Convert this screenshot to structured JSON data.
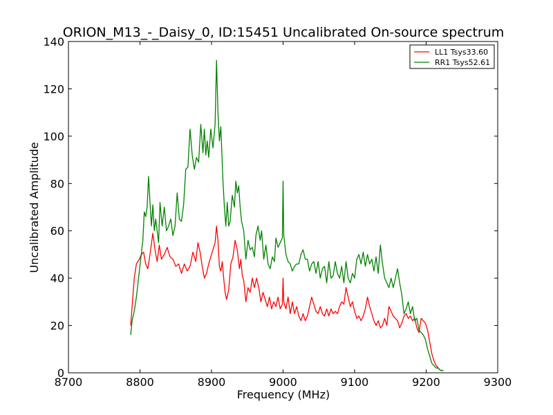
{
  "chart_data": {
    "type": "line",
    "title": "ORION_M13_-_Daisy_0, ID:15451 Uncalibrated On-source spectrum",
    "xlabel": "Frequency (MHz)",
    "ylabel": "Uncalibrated Amplitude",
    "xlim": [
      8700,
      9300
    ],
    "ylim": [
      0,
      140
    ],
    "xticks": [
      8700,
      8800,
      8900,
      9000,
      9100,
      9200,
      9300
    ],
    "yticks": [
      0,
      20,
      40,
      60,
      80,
      100,
      120,
      140
    ],
    "grid": false,
    "legend": "top-right",
    "series": [
      {
        "name": "LL1 Tsys33.60",
        "color": "#ff0000",
        "points": [
          [
            8787,
            20
          ],
          [
            8789,
            28
          ],
          [
            8792,
            40
          ],
          [
            8795,
            46
          ],
          [
            8799,
            48
          ],
          [
            8802,
            50
          ],
          [
            8805,
            51
          ],
          [
            8808,
            46
          ],
          [
            8811,
            44
          ],
          [
            8814,
            50
          ],
          [
            8818,
            59
          ],
          [
            8821,
            52
          ],
          [
            8824,
            47
          ],
          [
            8827,
            54
          ],
          [
            8830,
            48
          ],
          [
            8834,
            50
          ],
          [
            8838,
            53
          ],
          [
            8842,
            49
          ],
          [
            8846,
            48
          ],
          [
            8850,
            45
          ],
          [
            8854,
            46
          ],
          [
            8858,
            42
          ],
          [
            8862,
            46
          ],
          [
            8866,
            43
          ],
          [
            8870,
            45
          ],
          [
            8874,
            51
          ],
          [
            8878,
            47
          ],
          [
            8881,
            55
          ],
          [
            8884,
            51
          ],
          [
            8887,
            45
          ],
          [
            8890,
            40
          ],
          [
            8893,
            42
          ],
          [
            8896,
            46
          ],
          [
            8899,
            49
          ],
          [
            8902,
            52
          ],
          [
            8905,
            55
          ],
          [
            8907,
            62
          ],
          [
            8909,
            56
          ],
          [
            8911,
            45
          ],
          [
            8913,
            43
          ],
          [
            8915,
            47
          ],
          [
            8917,
            40
          ],
          [
            8919,
            34
          ],
          [
            8921,
            31
          ],
          [
            8924,
            35
          ],
          [
            8927,
            46
          ],
          [
            8930,
            49
          ],
          [
            8933,
            56
          ],
          [
            8936,
            52
          ],
          [
            8939,
            44
          ],
          [
            8941,
            48
          ],
          [
            8943,
            41
          ],
          [
            8945,
            39
          ],
          [
            8948,
            30
          ],
          [
            8951,
            36
          ],
          [
            8954,
            34
          ],
          [
            8957,
            40
          ],
          [
            8960,
            36
          ],
          [
            8963,
            40
          ],
          [
            8966,
            36
          ],
          [
            8969,
            30
          ],
          [
            8972,
            34
          ],
          [
            8975,
            31
          ],
          [
            8978,
            28
          ],
          [
            8981,
            32
          ],
          [
            8984,
            27
          ],
          [
            8987,
            30
          ],
          [
            8990,
            28
          ],
          [
            8993,
            32
          ],
          [
            8996,
            27
          ],
          [
            8999,
            29
          ],
          [
            9000,
            40
          ],
          [
            9001,
            30
          ],
          [
            9004,
            27
          ],
          [
            9007,
            32
          ],
          [
            9010,
            25
          ],
          [
            9013,
            30
          ],
          [
            9016,
            25
          ],
          [
            9019,
            28
          ],
          [
            9022,
            24
          ],
          [
            9025,
            22
          ],
          [
            9028,
            25
          ],
          [
            9031,
            22
          ],
          [
            9034,
            24
          ],
          [
            9037,
            28
          ],
          [
            9040,
            32
          ],
          [
            9043,
            29
          ],
          [
            9046,
            26
          ],
          [
            9049,
            25
          ],
          [
            9052,
            28
          ],
          [
            9055,
            25
          ],
          [
            9058,
            24
          ],
          [
            9061,
            27
          ],
          [
            9064,
            24
          ],
          [
            9067,
            27
          ],
          [
            9070,
            25
          ],
          [
            9073,
            26
          ],
          [
            9076,
            25
          ],
          [
            9079,
            28
          ],
          [
            9082,
            30
          ],
          [
            9085,
            29
          ],
          [
            9088,
            36
          ],
          [
            9091,
            32
          ],
          [
            9094,
            28
          ],
          [
            9097,
            30
          ],
          [
            9100,
            26
          ],
          [
            9103,
            23
          ],
          [
            9106,
            24
          ],
          [
            9109,
            22
          ],
          [
            9112,
            24
          ],
          [
            9115,
            27
          ],
          [
            9118,
            32
          ],
          [
            9121,
            28
          ],
          [
            9124,
            25
          ],
          [
            9127,
            22
          ],
          [
            9130,
            20
          ],
          [
            9133,
            22
          ],
          [
            9136,
            19
          ],
          [
            9139,
            20
          ],
          [
            9142,
            23
          ],
          [
            9145,
            20
          ],
          [
            9148,
            28
          ],
          [
            9151,
            26
          ],
          [
            9154,
            24
          ],
          [
            9157,
            23
          ],
          [
            9160,
            22
          ],
          [
            9163,
            19
          ],
          [
            9166,
            21
          ],
          [
            9169,
            24
          ],
          [
            9172,
            25
          ],
          [
            9175,
            23
          ],
          [
            9178,
            24
          ],
          [
            9181,
            22
          ],
          [
            9184,
            23
          ],
          [
            9187,
            19
          ],
          [
            9190,
            17
          ],
          [
            9193,
            23
          ],
          [
            9196,
            22
          ],
          [
            9199,
            21
          ],
          [
            9202,
            18
          ],
          [
            9205,
            13
          ],
          [
            9208,
            8
          ],
          [
            9211,
            5
          ],
          [
            9214,
            3
          ],
          [
            9217,
            2
          ],
          [
            9220,
            1
          ],
          [
            9224,
            1
          ]
        ]
      },
      {
        "name": "RR1 Tsys52.61",
        "color": "#008000",
        "points": [
          [
            8787,
            16
          ],
          [
            8789,
            22
          ],
          [
            8792,
            26
          ],
          [
            8795,
            32
          ],
          [
            8798,
            40
          ],
          [
            8801,
            48
          ],
          [
            8804,
            56
          ],
          [
            8806,
            68
          ],
          [
            8808,
            66
          ],
          [
            8810,
            70
          ],
          [
            8812,
            83
          ],
          [
            8814,
            72
          ],
          [
            8816,
            62
          ],
          [
            8818,
            71
          ],
          [
            8820,
            60
          ],
          [
            8822,
            65
          ],
          [
            8824,
            60
          ],
          [
            8826,
            55
          ],
          [
            8828,
            72
          ],
          [
            8831,
            62
          ],
          [
            8834,
            70
          ],
          [
            8837,
            60
          ],
          [
            8840,
            62
          ],
          [
            8843,
            65
          ],
          [
            8846,
            58
          ],
          [
            8849,
            62
          ],
          [
            8852,
            76
          ],
          [
            8855,
            65
          ],
          [
            8858,
            64
          ],
          [
            8861,
            71
          ],
          [
            8864,
            86
          ],
          [
            8867,
            87
          ],
          [
            8870,
            103
          ],
          [
            8873,
            92
          ],
          [
            8876,
            86
          ],
          [
            8879,
            91
          ],
          [
            8882,
            89
          ],
          [
            8885,
            105
          ],
          [
            8888,
            93
          ],
          [
            8890,
            103
          ],
          [
            8892,
            92
          ],
          [
            8894,
            98
          ],
          [
            8896,
            91
          ],
          [
            8899,
            103
          ],
          [
            8902,
            95
          ],
          [
            8905,
            105
          ],
          [
            8907,
            132
          ],
          [
            8909,
            110
          ],
          [
            8911,
            98
          ],
          [
            8913,
            104
          ],
          [
            8916,
            81
          ],
          [
            8918,
            70
          ],
          [
            8920,
            62
          ],
          [
            8922,
            72
          ],
          [
            8924,
            62
          ],
          [
            8926,
            64
          ],
          [
            8929,
            75
          ],
          [
            8932,
            70
          ],
          [
            8934,
            81
          ],
          [
            8936,
            76
          ],
          [
            8938,
            79
          ],
          [
            8940,
            70
          ],
          [
            8942,
            64
          ],
          [
            8945,
            60
          ],
          [
            8948,
            48
          ],
          [
            8951,
            56
          ],
          [
            8954,
            52
          ],
          [
            8957,
            53
          ],
          [
            8960,
            49
          ],
          [
            8962,
            58
          ],
          [
            8965,
            62
          ],
          [
            8968,
            56
          ],
          [
            8970,
            60
          ],
          [
            8973,
            48
          ],
          [
            8976,
            54
          ],
          [
            8979,
            46
          ],
          [
            8982,
            44
          ],
          [
            8985,
            49
          ],
          [
            8988,
            47
          ],
          [
            8990,
            57
          ],
          [
            8993,
            53
          ],
          [
            8996,
            55
          ],
          [
            8999,
            57
          ],
          [
            9000,
            81
          ],
          [
            9001,
            58
          ],
          [
            9004,
            50
          ],
          [
            9007,
            47
          ],
          [
            9010,
            46
          ],
          [
            9013,
            43
          ],
          [
            9016,
            45
          ],
          [
            9019,
            46
          ],
          [
            9022,
            46
          ],
          [
            9025,
            50
          ],
          [
            9028,
            52
          ],
          [
            9031,
            48
          ],
          [
            9034,
            48
          ],
          [
            9037,
            43
          ],
          [
            9040,
            46
          ],
          [
            9043,
            47
          ],
          [
            9046,
            42
          ],
          [
            9049,
            47
          ],
          [
            9052,
            40
          ],
          [
            9055,
            44
          ],
          [
            9058,
            45
          ],
          [
            9061,
            38
          ],
          [
            9064,
            47
          ],
          [
            9067,
            40
          ],
          [
            9070,
            41
          ],
          [
            9073,
            47
          ],
          [
            9076,
            42
          ],
          [
            9079,
            40
          ],
          [
            9082,
            45
          ],
          [
            9085,
            38
          ],
          [
            9088,
            47
          ],
          [
            9091,
            40
          ],
          [
            9094,
            38
          ],
          [
            9097,
            42
          ],
          [
            9100,
            40
          ],
          [
            9103,
            48
          ],
          [
            9106,
            50
          ],
          [
            9109,
            46
          ],
          [
            9112,
            51
          ],
          [
            9115,
            45
          ],
          [
            9118,
            50
          ],
          [
            9121,
            46
          ],
          [
            9124,
            48
          ],
          [
            9127,
            43
          ],
          [
            9130,
            49
          ],
          [
            9133,
            42
          ],
          [
            9136,
            54
          ],
          [
            9139,
            46
          ],
          [
            9142,
            40
          ],
          [
            9145,
            38
          ],
          [
            9148,
            36
          ],
          [
            9151,
            40
          ],
          [
            9154,
            36
          ],
          [
            9157,
            40
          ],
          [
            9160,
            44
          ],
          [
            9163,
            38
          ],
          [
            9166,
            33
          ],
          [
            9169,
            25
          ],
          [
            9172,
            27
          ],
          [
            9175,
            30
          ],
          [
            9178,
            25
          ],
          [
            9181,
            28
          ],
          [
            9184,
            22
          ],
          [
            9187,
            23
          ],
          [
            9190,
            18
          ],
          [
            9193,
            17
          ],
          [
            9196,
            16
          ],
          [
            9199,
            14
          ],
          [
            9202,
            10
          ],
          [
            9205,
            7
          ],
          [
            9208,
            4
          ],
          [
            9211,
            3
          ],
          [
            9214,
            2
          ],
          [
            9217,
            2
          ],
          [
            9220,
            1
          ],
          [
            9224,
            1
          ]
        ]
      }
    ]
  }
}
